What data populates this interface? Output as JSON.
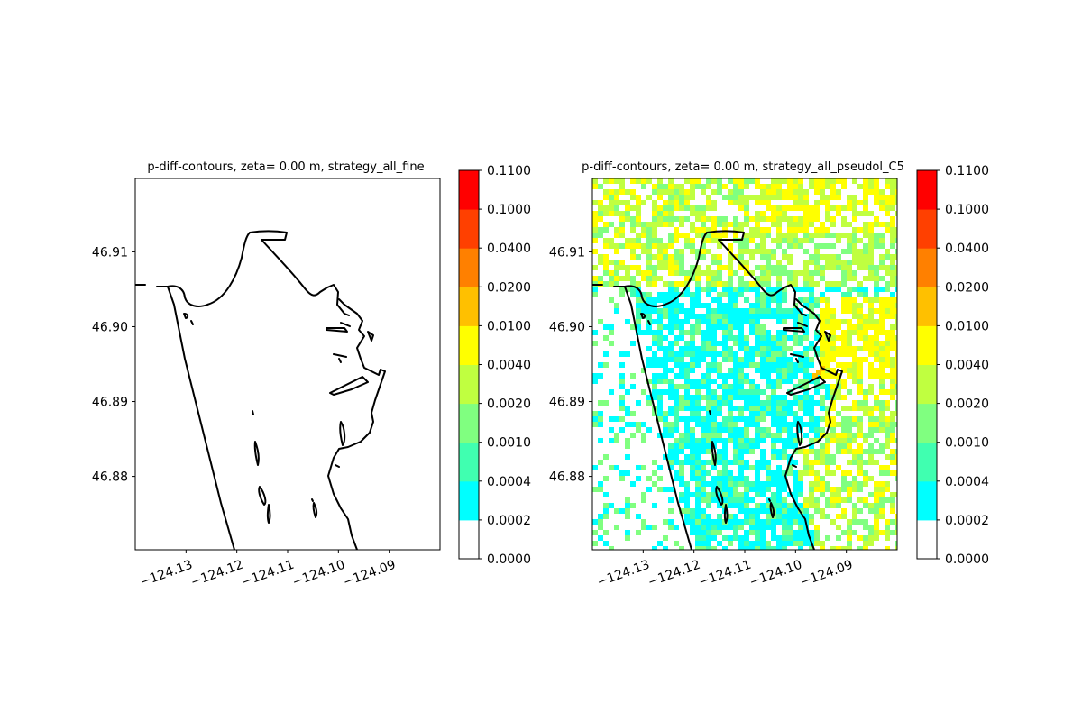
{
  "chart_data": [
    {
      "type": "heatmap",
      "title": "p-diff-contours, zeta= 0.00 m, strategy_all_fine",
      "xlabel": "",
      "ylabel": "",
      "xlim": [
        -124.14,
        -124.08
      ],
      "ylim": [
        46.8702,
        46.9198
      ],
      "x_ticks": [
        "−124.13",
        "−124.12",
        "−124.11",
        "−124.10",
        "−124.09"
      ],
      "y_ticks": [
        "46.91",
        "46.90",
        "46.89",
        "46.88"
      ],
      "x_tick_values": [
        -124.13,
        -124.12,
        -124.11,
        -124.1,
        -124.09
      ],
      "y_tick_values": [
        46.91,
        46.9,
        46.89,
        46.88
      ],
      "field": "empty (all values below 0.0002)",
      "colorbar": {
        "levels": [
          "0.0000",
          "0.0002",
          "0.0004",
          "0.0010",
          "0.0020",
          "0.0040",
          "0.0100",
          "0.0200",
          "0.0400",
          "0.1000",
          "0.1100"
        ],
        "colors": [
          "#ffffff",
          "#00ffff",
          "#40ffb0",
          "#80ff80",
          "#c0ff40",
          "#ffff00",
          "#ffc000",
          "#ff8000",
          "#ff4000",
          "#ff0000"
        ]
      }
    },
    {
      "type": "heatmap",
      "title": "p-diff-contours, zeta= 0.00 m, strategy_all_pseudol_C5",
      "xlabel": "",
      "ylabel": "",
      "xlim": [
        -124.14,
        -124.08
      ],
      "ylim": [
        46.8702,
        46.9198
      ],
      "x_ticks": [
        "−124.13",
        "−124.12",
        "−124.11",
        "−124.10",
        "−124.09"
      ],
      "y_ticks": [
        "46.91",
        "46.90",
        "46.89",
        "46.88"
      ],
      "x_tick_values": [
        -124.13,
        -124.12,
        -124.11,
        -124.1,
        -124.09
      ],
      "y_tick_values": [
        46.91,
        46.9,
        46.89,
        46.88
      ],
      "field": "mixed 0.0002-0.0100, mostly 0.0002-0.0004 in channels, 0.0010-0.0040 offshore, 0.0040-0.0100 north-east",
      "colorbar": {
        "levels": [
          "0.0000",
          "0.0002",
          "0.0004",
          "0.0010",
          "0.0020",
          "0.0040",
          "0.0100",
          "0.0200",
          "0.0400",
          "0.1000",
          "0.1100"
        ],
        "colors": [
          "#ffffff",
          "#00ffff",
          "#40ffb0",
          "#80ff80",
          "#c0ff40",
          "#ffff00",
          "#ffc000",
          "#ff8000",
          "#ff4000",
          "#ff0000"
        ]
      }
    }
  ]
}
